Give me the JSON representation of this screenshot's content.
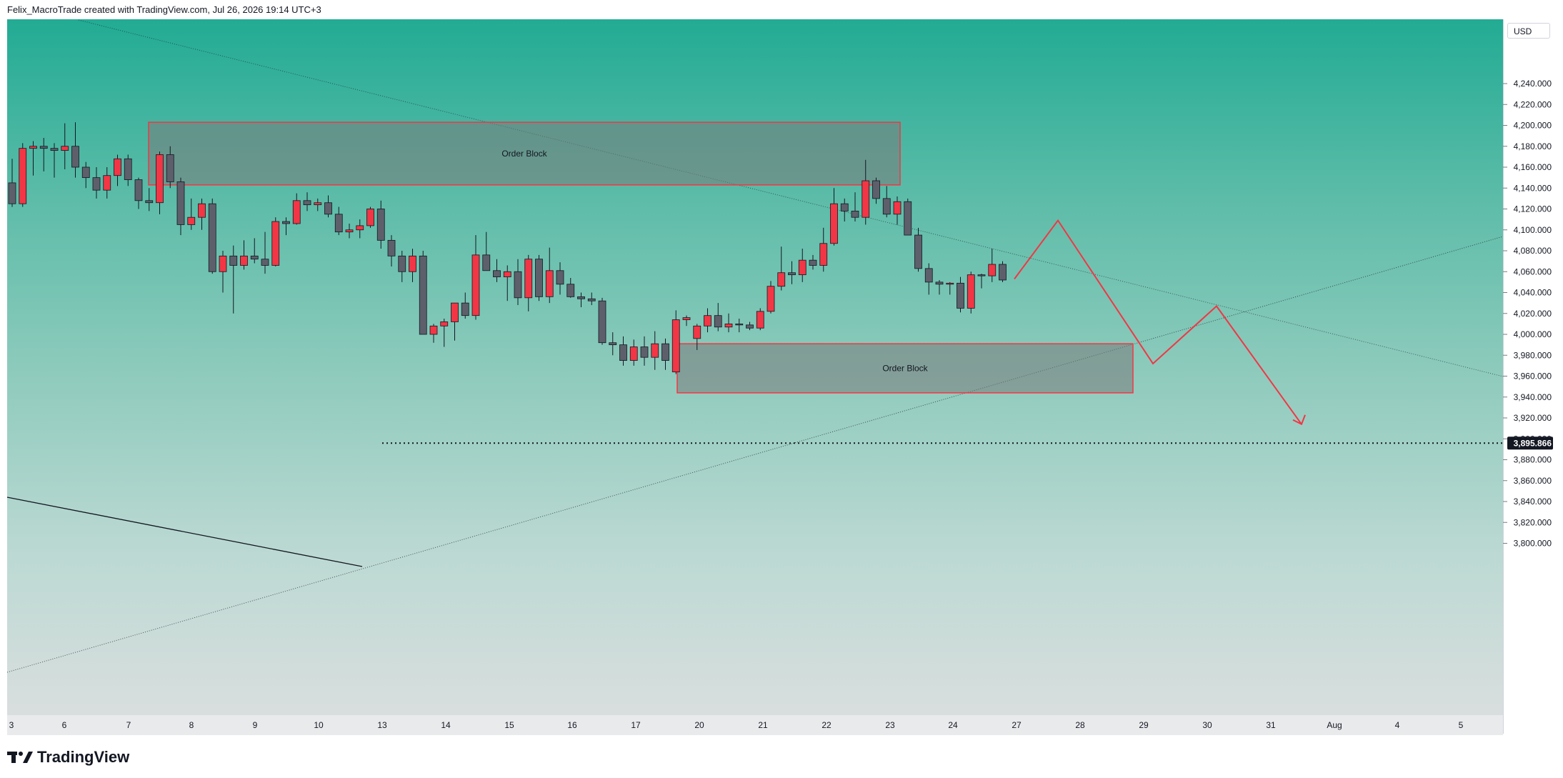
{
  "header": {
    "text": "Felix_MacroTrade created with TradingView.com, Jul 26, 2026 19:14 UTC+3"
  },
  "footer": {
    "brand": "TradingView"
  },
  "toolbar": {
    "currency": "USD"
  },
  "chart_data": {
    "type": "candlestick",
    "currency": "USD",
    "ylim": [
      3795,
      4275
    ],
    "y_ticks": [
      "4,240.000",
      "4,220.000",
      "4,200.000",
      "4,180.000",
      "4,160.000",
      "4,140.000",
      "4,120.000",
      "4,100.000",
      "4,080.000",
      "4,060.000",
      "4,040.000",
      "4,020.000",
      "4,000.000",
      "3,980.000",
      "3,960.000",
      "3,940.000",
      "3,920.000",
      "3,900.000",
      "3,880.000",
      "3,860.000",
      "3,840.000",
      "3,820.000",
      "3,800.000"
    ],
    "x_ticks": [
      "3",
      "6",
      "7",
      "8",
      "9",
      "10",
      "13",
      "14",
      "15",
      "16",
      "17",
      "20",
      "21",
      "22",
      "23",
      "24",
      "27",
      "28",
      "29",
      "30",
      "31",
      "Aug",
      "4",
      "5"
    ],
    "current_price": "3,895.866",
    "colors": {
      "up": "#f23645",
      "down": "#5d606b",
      "wick": "#131722",
      "zone_border": "#f23645",
      "projection": "#f23645"
    },
    "candles": [
      [
        4145,
        4168,
        4122,
        4125
      ],
      [
        4125,
        4183,
        4122,
        4178
      ],
      [
        4178,
        4185,
        4152,
        4180
      ],
      [
        4180,
        4188,
        4156,
        4178
      ],
      [
        4178,
        4183,
        4150,
        4176
      ],
      [
        4176,
        4202,
        4158,
        4180
      ],
      [
        4180,
        4203,
        4150,
        4160
      ],
      [
        4160,
        4165,
        4140,
        4150
      ],
      [
        4150,
        4160,
        4130,
        4138
      ],
      [
        4138,
        4160,
        4130,
        4152
      ],
      [
        4152,
        4172,
        4142,
        4168
      ],
      [
        4168,
        4172,
        4142,
        4148
      ],
      [
        4148,
        4150,
        4120,
        4128
      ],
      [
        4128,
        4140,
        4118,
        4126
      ],
      [
        4126,
        4175,
        4115,
        4172
      ],
      [
        4172,
        4180,
        4140,
        4146
      ],
      [
        4146,
        4150,
        4095,
        4105
      ],
      [
        4105,
        4130,
        4100,
        4112
      ],
      [
        4112,
        4130,
        4100,
        4125
      ],
      [
        4125,
        4130,
        4058,
        4060
      ],
      [
        4060,
        4080,
        4040,
        4075
      ],
      [
        4075,
        4085,
        4020,
        4066
      ],
      [
        4066,
        4090,
        4062,
        4075
      ],
      [
        4075,
        4092,
        4068,
        4072
      ],
      [
        4072,
        4098,
        4058,
        4066
      ],
      [
        4066,
        4112,
        4065,
        4108
      ],
      [
        4108,
        4112,
        4095,
        4106
      ],
      [
        4106,
        4135,
        4105,
        4128
      ],
      [
        4128,
        4136,
        4118,
        4124
      ],
      [
        4124,
        4130,
        4118,
        4126
      ],
      [
        4126,
        4133,
        4112,
        4115
      ],
      [
        4115,
        4122,
        4095,
        4098
      ],
      [
        4098,
        4106,
        4092,
        4100
      ],
      [
        4100,
        4110,
        4092,
        4104
      ],
      [
        4104,
        4122,
        4102,
        4120
      ],
      [
        4120,
        4128,
        4082,
        4090
      ],
      [
        4090,
        4095,
        4065,
        4075
      ],
      [
        4075,
        4080,
        4050,
        4060
      ],
      [
        4060,
        4082,
        4050,
        4075
      ],
      [
        4075,
        4080,
        4000,
        4000
      ],
      [
        4000,
        4010,
        3992,
        4008
      ],
      [
        4008,
        4015,
        3988,
        4012
      ],
      [
        4012,
        4030,
        3994,
        4030
      ],
      [
        4030,
        4040,
        4015,
        4018
      ],
      [
        4018,
        4095,
        4014,
        4076
      ],
      [
        4076,
        4098,
        4062,
        4061
      ],
      [
        4061,
        4072,
        4050,
        4055
      ],
      [
        4055,
        4066,
        4032,
        4060
      ],
      [
        4060,
        4072,
        4028,
        4035
      ],
      [
        4035,
        4076,
        4022,
        4072
      ],
      [
        4072,
        4076,
        4032,
        4036
      ],
      [
        4036,
        4083,
        4030,
        4061
      ],
      [
        4061,
        4069,
        4038,
        4048
      ],
      [
        4048,
        4054,
        4035,
        4036
      ],
      [
        4036,
        4040,
        4026,
        4034
      ],
      [
        4034,
        4040,
        4028,
        4032
      ],
      [
        4032,
        4035,
        3990,
        3992
      ],
      [
        3992,
        4002,
        3980,
        3990
      ],
      [
        3990,
        3998,
        3970,
        3975
      ],
      [
        3975,
        3995,
        3970,
        3988
      ],
      [
        3988,
        3998,
        3970,
        3978
      ],
      [
        3978,
        4003,
        3966,
        3991
      ],
      [
        3991,
        3996,
        3966,
        3975
      ],
      [
        3964,
        4023,
        3962,
        4014
      ],
      [
        4014,
        4018,
        4008,
        4016
      ],
      [
        3996,
        4010,
        3985,
        4008
      ],
      [
        4008,
        4025,
        4002,
        4018
      ],
      [
        4018,
        4030,
        4003,
        4007
      ],
      [
        4007,
        4020,
        4002,
        4010
      ],
      [
        4010,
        4015,
        4002,
        4009
      ],
      [
        4009,
        4012,
        4004,
        4006
      ],
      [
        4006,
        4025,
        4004,
        4022
      ],
      [
        4022,
        4051,
        4020,
        4046
      ],
      [
        4046,
        4084,
        4042,
        4059
      ],
      [
        4059,
        4070,
        4048,
        4057
      ],
      [
        4057,
        4082,
        4050,
        4071
      ],
      [
        4071,
        4076,
        4062,
        4066
      ],
      [
        4066,
        4102,
        4060,
        4087
      ],
      [
        4087,
        4140,
        4085,
        4125
      ],
      [
        4125,
        4130,
        4108,
        4118
      ],
      [
        4118,
        4136,
        4108,
        4112
      ],
      [
        4112,
        4167,
        4105,
        4147
      ],
      [
        4147,
        4150,
        4125,
        4130
      ],
      [
        4130,
        4142,
        4112,
        4115
      ],
      [
        4115,
        4132,
        4105,
        4127
      ],
      [
        4127,
        4130,
        4095,
        4095
      ],
      [
        4095,
        4102,
        4060,
        4063
      ],
      [
        4063,
        4068,
        4038,
        4050
      ],
      [
        4050,
        4052,
        4038,
        4048
      ],
      [
        4048,
        4050,
        4038,
        4049
      ],
      [
        4049,
        4055,
        4021,
        4025
      ],
      [
        4025,
        4060,
        4020,
        4057
      ],
      [
        4057,
        4058,
        4044,
        4056
      ],
      [
        4056,
        4082,
        4050,
        4067
      ],
      [
        4067,
        4070,
        4050,
        4052
      ]
    ],
    "zones": [
      {
        "label": "Order Block",
        "top": 4203,
        "bottom": 4143
      },
      {
        "label": "Order Block",
        "top": 3991,
        "bottom": 3944
      }
    ],
    "projection": [
      4053,
      4109,
      3972,
      4027,
      3914
    ]
  }
}
